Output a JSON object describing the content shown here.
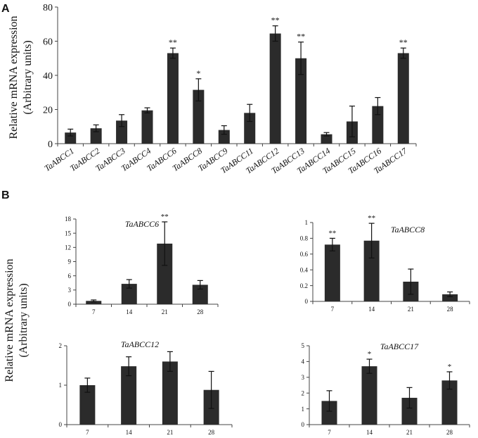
{
  "panels": {
    "a_label": "A",
    "b_label": "B"
  },
  "shared_ylabel": {
    "line1": "Relative mRNA expression",
    "line2": "(Arbitrary units)"
  },
  "chart_data": [
    {
      "id": "A",
      "type": "bar",
      "title": "",
      "ylabel": "Relative mRNA expression (Arbitrary units)",
      "ylim": [
        0,
        80
      ],
      "yticks": [
        0,
        20,
        40,
        60,
        80
      ],
      "categories": [
        "TaABCC1",
        "TaABCC2",
        "TaABCC3",
        "TaABCC4",
        "TaABCC6",
        "TaABCC8",
        "TaABCC9",
        "TaABCC11",
        "TaABCC12",
        "TaABCC13",
        "TaABCC14",
        "TaABCC15",
        "TaABCC16",
        "TaABCC17"
      ],
      "values": [
        6.5,
        9,
        13.5,
        19.5,
        53,
        31.5,
        8,
        18,
        64.5,
        50,
        5.5,
        13,
        22,
        53
      ],
      "errors": [
        2,
        2,
        3.5,
        1.5,
        3,
        6.5,
        2.5,
        5,
        4.5,
        9.5,
        1,
        9,
        5,
        3
      ],
      "significance": [
        "",
        "",
        "",
        "",
        "**",
        "*",
        "",
        "",
        "**",
        "**",
        "",
        "",
        "",
        "**"
      ]
    },
    {
      "id": "B1",
      "type": "bar",
      "title": "TaABCC6",
      "ylim": [
        0,
        18
      ],
      "yticks": [
        0,
        3,
        6,
        9,
        12,
        15,
        18
      ],
      "categories": [
        "7",
        "14",
        "21",
        "28"
      ],
      "values": [
        0.7,
        4.3,
        12.8,
        4.1
      ],
      "errors": [
        0.2,
        0.9,
        4.6,
        0.9
      ],
      "significance": [
        "",
        "",
        "**",
        ""
      ]
    },
    {
      "id": "B2",
      "type": "bar",
      "title": "TaABCC8",
      "ylim": [
        0,
        1
      ],
      "yticks": [
        0,
        0.2,
        0.4,
        0.6,
        0.8,
        1
      ],
      "categories": [
        "7",
        "14",
        "21",
        "28"
      ],
      "values": [
        0.72,
        0.77,
        0.25,
        0.09
      ],
      "errors": [
        0.08,
        0.22,
        0.16,
        0.03
      ],
      "significance": [
        "**",
        "**",
        "",
        ""
      ]
    },
    {
      "id": "B3",
      "type": "bar",
      "title": "TaABCC12",
      "ylim": [
        0,
        2
      ],
      "yticks": [
        0,
        1,
        2
      ],
      "categories": [
        "7",
        "14",
        "21",
        "28"
      ],
      "values": [
        1.0,
        1.48,
        1.6,
        0.88
      ],
      "errors": [
        0.18,
        0.24,
        0.25,
        0.47
      ],
      "significance": [
        "",
        "",
        "",
        ""
      ]
    },
    {
      "id": "B4",
      "type": "bar",
      "title": "TaABCC17",
      "ylim": [
        0,
        5
      ],
      "yticks": [
        0,
        1,
        2,
        3,
        4,
        5
      ],
      "categories": [
        "7",
        "14",
        "21",
        "28"
      ],
      "values": [
        1.5,
        3.7,
        1.7,
        2.8
      ],
      "errors": [
        0.65,
        0.45,
        0.65,
        0.55
      ],
      "significance": [
        "",
        "*",
        "",
        "*"
      ]
    }
  ]
}
